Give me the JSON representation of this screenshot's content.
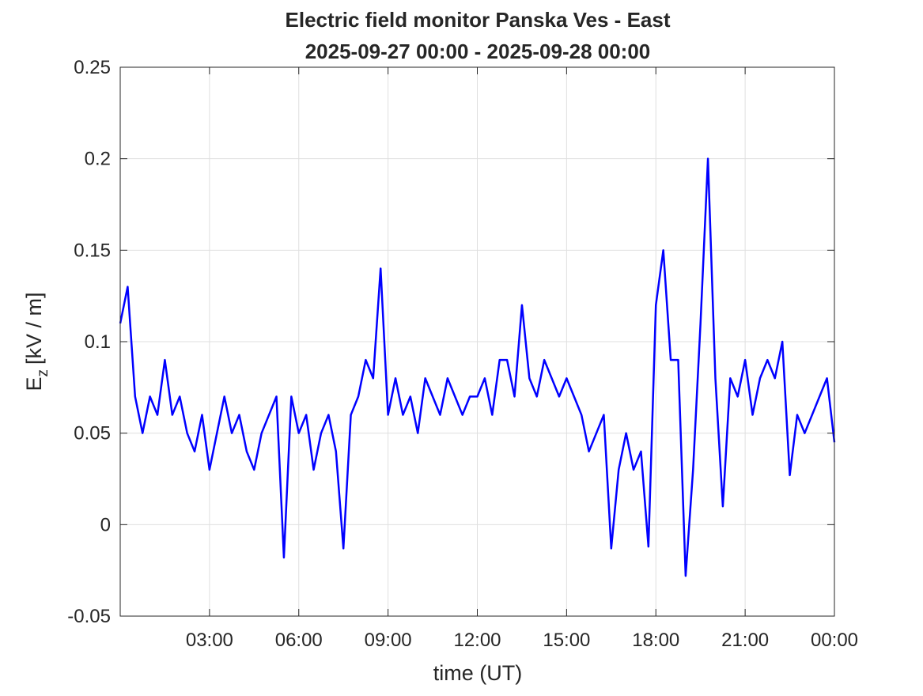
{
  "chart_data": {
    "type": "line",
    "title": [
      "Electric field monitor Panska Ves - East",
      "2025-09-27 00:00 - 2025-09-28 00:00"
    ],
    "xlabel": "time (UT)",
    "ylabel": {
      "symbol": "E",
      "subscript": "z",
      "unit": "[kV / m]"
    },
    "xlim": [
      0,
      24
    ],
    "xticks": [
      {
        "value": 3,
        "label": "03:00"
      },
      {
        "value": 6,
        "label": "06:00"
      },
      {
        "value": 9,
        "label": "09:00"
      },
      {
        "value": 12,
        "label": "12:00"
      },
      {
        "value": 15,
        "label": "15:00"
      },
      {
        "value": 18,
        "label": "18:00"
      },
      {
        "value": 21,
        "label": "21:00"
      },
      {
        "value": 24,
        "label": "00:00"
      }
    ],
    "ylim": [
      -0.05,
      0.25
    ],
    "yticks": [
      -0.05,
      0,
      0.05,
      0.1,
      0.15,
      0.2,
      0.25
    ],
    "grid": true,
    "x": [
      0,
      0.25,
      0.5,
      0.75,
      1,
      1.25,
      1.5,
      1.75,
      2,
      2.25,
      2.5,
      2.75,
      3,
      3.25,
      3.5,
      3.75,
      4,
      4.25,
      4.5,
      4.75,
      5,
      5.25,
      5.5,
      5.75,
      6,
      6.25,
      6.5,
      6.75,
      7,
      7.25,
      7.5,
      7.75,
      8,
      8.25,
      8.5,
      8.75,
      9,
      9.25,
      9.5,
      9.75,
      10,
      10.25,
      10.5,
      10.75,
      11,
      11.25,
      11.5,
      11.75,
      12,
      12.25,
      12.5,
      12.75,
      13,
      13.25,
      13.5,
      13.75,
      14,
      14.25,
      14.5,
      14.75,
      15,
      15.25,
      15.5,
      15.75,
      16,
      16.25,
      16.5,
      16.75,
      17,
      17.25,
      17.5,
      17.75,
      18,
      18.25,
      18.5,
      18.75,
      19,
      19.25,
      19.5,
      19.75,
      20,
      20.25,
      20.5,
      20.75,
      21,
      21.25,
      21.5,
      21.75,
      22,
      22.25,
      22.5,
      22.75,
      23,
      23.25,
      23.5,
      23.75,
      24
    ],
    "series": [
      {
        "color": "#0000ff",
        "values": [
          0.11,
          0.13,
          0.07,
          0.05,
          0.07,
          0.06,
          0.09,
          0.06,
          0.07,
          0.05,
          0.04,
          0.06,
          0.03,
          0.05,
          0.07,
          0.05,
          0.06,
          0.04,
          0.03,
          0.05,
          0.06,
          0.07,
          -0.018,
          0.07,
          0.05,
          0.06,
          0.03,
          0.05,
          0.06,
          0.04,
          -0.013,
          0.06,
          0.07,
          0.09,
          0.08,
          0.14,
          0.06,
          0.08,
          0.06,
          0.07,
          0.05,
          0.08,
          0.07,
          0.06,
          0.08,
          0.07,
          0.06,
          0.07,
          0.07,
          0.08,
          0.06,
          0.09,
          0.09,
          0.07,
          0.12,
          0.08,
          0.07,
          0.09,
          0.08,
          0.07,
          0.08,
          0.07,
          0.06,
          0.04,
          0.05,
          0.06,
          -0.013,
          0.03,
          0.05,
          0.03,
          0.04,
          -0.012,
          0.12,
          0.15,
          0.09,
          0.09,
          -0.028,
          0.03,
          0.11,
          0.2,
          0.08,
          0.01,
          0.08,
          0.07,
          0.09,
          0.06,
          0.08,
          0.09,
          0.08,
          0.1,
          0.027,
          0.06,
          0.05,
          0.06,
          0.07,
          0.08,
          0.045
        ]
      }
    ]
  }
}
